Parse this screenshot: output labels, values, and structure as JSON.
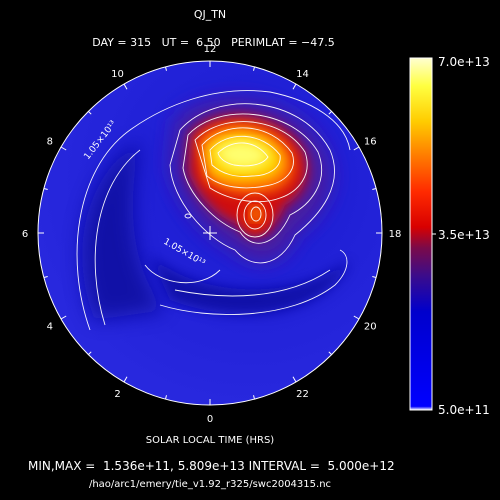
{
  "chart_data": {
    "type": "heatmap",
    "projection": "polar",
    "title": "QJ_TN",
    "header": {
      "day_label": "DAY =",
      "day": "315",
      "ut_label": "UT =",
      "ut": "6.50",
      "perimlat_label": "PERIMLAT =",
      "perimlat": "−47.5"
    },
    "xlabel": "SOLAR LOCAL TIME (HRS)",
    "hour_labels": [
      "12",
      "14",
      "16",
      "18",
      "20",
      "22",
      "0",
      "2",
      "4",
      "6",
      "8",
      "10"
    ],
    "colorbar": {
      "min_label": "5.0e+11",
      "mid_label": "3.5e+13",
      "max_label": "7.0e+13",
      "min": 500000000000.0,
      "max": 70000000000000.0
    },
    "contour_labels": [
      "1.05×10¹³",
      "1.05×10¹³"
    ],
    "stats": {
      "minmax_label": "MIN,MAX =",
      "min": "1.536e+11",
      "max": "5.809e+13",
      "interval_label": "INTERVAL =",
      "interval": "5.000e+12"
    },
    "file_path": "/hao/arc1/emery/tie_v1.92_r325/swc2004315.nc",
    "colors": {
      "background": "#000000",
      "low": "#1f1fd6",
      "high": "#ffff9f",
      "contour": "#ffffff"
    }
  }
}
